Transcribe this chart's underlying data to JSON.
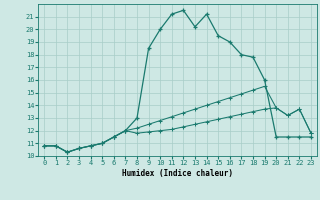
{
  "xlabel": "Humidex (Indice chaleur)",
  "ylabel": "",
  "bg_color": "#cee8e4",
  "grid_color": "#a8cec8",
  "line_color": "#1a7a6e",
  "xlim": [
    -0.5,
    23.5
  ],
  "ylim": [
    10,
    22
  ],
  "yticks": [
    10,
    11,
    12,
    13,
    14,
    15,
    16,
    17,
    18,
    19,
    20,
    21
  ],
  "xticks": [
    0,
    1,
    2,
    3,
    4,
    5,
    6,
    7,
    8,
    9,
    10,
    11,
    12,
    13,
    14,
    15,
    16,
    17,
    18,
    19,
    20,
    21,
    22,
    23
  ],
  "line1_x": [
    0,
    1,
    2,
    3,
    4,
    5,
    6,
    7,
    8,
    9,
    10,
    11,
    12,
    13,
    14,
    15,
    16,
    17,
    18,
    19,
    20,
    21,
    22,
    23
  ],
  "line1_y": [
    10.8,
    10.8,
    10.3,
    10.6,
    10.8,
    11.0,
    11.5,
    12.0,
    13.0,
    18.5,
    20.0,
    21.2,
    21.5,
    20.2,
    21.2,
    19.5,
    19.0,
    18.0,
    17.8,
    16.0,
    11.5,
    11.5,
    11.5,
    11.5
  ],
  "line2_x": [
    0,
    1,
    2,
    3,
    4,
    5,
    6,
    7,
    8,
    9,
    10,
    11,
    12,
    13,
    14,
    15,
    16,
    17,
    18,
    19,
    20,
    21,
    22,
    23
  ],
  "line2_y": [
    10.8,
    10.8,
    10.3,
    10.6,
    10.8,
    11.0,
    11.5,
    12.0,
    12.2,
    12.5,
    12.8,
    13.1,
    13.4,
    13.7,
    14.0,
    14.3,
    14.6,
    14.9,
    15.2,
    15.5,
    13.8,
    13.2,
    13.7,
    11.8
  ],
  "line3_x": [
    0,
    1,
    2,
    3,
    4,
    5,
    6,
    7,
    8,
    9,
    10,
    11,
    12,
    13,
    14,
    15,
    16,
    17,
    18,
    19,
    20,
    21,
    22,
    23
  ],
  "line3_y": [
    10.8,
    10.8,
    10.3,
    10.6,
    10.8,
    11.0,
    11.5,
    12.0,
    11.8,
    11.9,
    12.0,
    12.1,
    12.3,
    12.5,
    12.7,
    12.9,
    13.1,
    13.3,
    13.5,
    13.7,
    13.8,
    13.2,
    13.7,
    11.8
  ]
}
